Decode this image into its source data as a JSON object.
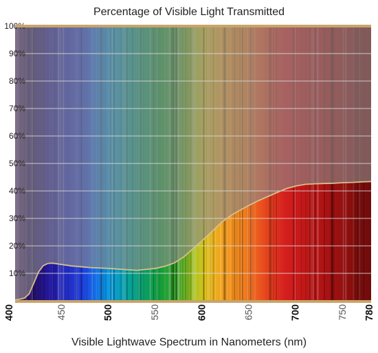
{
  "chart_data": {
    "type": "area",
    "title": "Percentage of Visible Light Transmitted",
    "xlabel": "Visible Lightwave Spectrum in Nanometers (nm)",
    "ylabel": "",
    "xlim": [
      400,
      780
    ],
    "ylim": [
      0,
      100
    ],
    "grid": true,
    "legend": "none",
    "x_ticks": [
      {
        "value": 400,
        "label": "400",
        "bold": true
      },
      {
        "value": 450,
        "label": "450",
        "bold": false
      },
      {
        "value": 500,
        "label": "500",
        "bold": true
      },
      {
        "value": 550,
        "label": "550",
        "bold": false
      },
      {
        "value": 600,
        "label": "600",
        "bold": true
      },
      {
        "value": 650,
        "label": "650",
        "bold": false
      },
      {
        "value": 700,
        "label": "700",
        "bold": true
      },
      {
        "value": 750,
        "label": "750",
        "bold": false
      },
      {
        "value": 780,
        "label": "780",
        "bold": true
      }
    ],
    "y_ticks": [
      {
        "value": 10,
        "label": "10%"
      },
      {
        "value": 20,
        "label": "20%"
      },
      {
        "value": 30,
        "label": "30%"
      },
      {
        "value": 40,
        "label": "40%"
      },
      {
        "value": 50,
        "label": "50%"
      },
      {
        "value": 60,
        "label": "60%"
      },
      {
        "value": 70,
        "label": "70%"
      },
      {
        "value": 80,
        "label": "80%"
      },
      {
        "value": 90,
        "label": "90%"
      },
      {
        "value": 100,
        "label": "100%"
      }
    ],
    "series": [
      {
        "x": [
          400,
          405,
          410,
          415,
          420,
          425,
          430,
          435,
          440,
          450,
          460,
          480,
          500,
          520,
          530,
          550,
          560,
          570,
          580,
          590,
          600,
          610,
          620,
          630,
          640,
          650,
          660,
          670,
          680,
          690,
          700,
          710,
          720,
          730,
          740,
          750,
          760,
          770,
          780
        ],
        "y": [
          0.3,
          0.6,
          1.0,
          2.5,
          6.5,
          10.5,
          12.8,
          13.6,
          13.7,
          13.2,
          12.7,
          12.1,
          11.8,
          11.3,
          11.1,
          11.8,
          12.6,
          13.8,
          16.0,
          19.0,
          22.0,
          25.2,
          28.5,
          31.0,
          33.0,
          34.8,
          36.5,
          38.0,
          39.5,
          40.9,
          41.8,
          42.4,
          42.6,
          42.7,
          42.8,
          43.0,
          43.1,
          43.3,
          43.4
        ]
      }
    ],
    "colors": {
      "frame": "#c8a46a",
      "grid": "#dcdcdc",
      "curve": "#d8bf8a",
      "backdrop": "#7d7d7d",
      "veil": "#8a8a8a"
    }
  }
}
